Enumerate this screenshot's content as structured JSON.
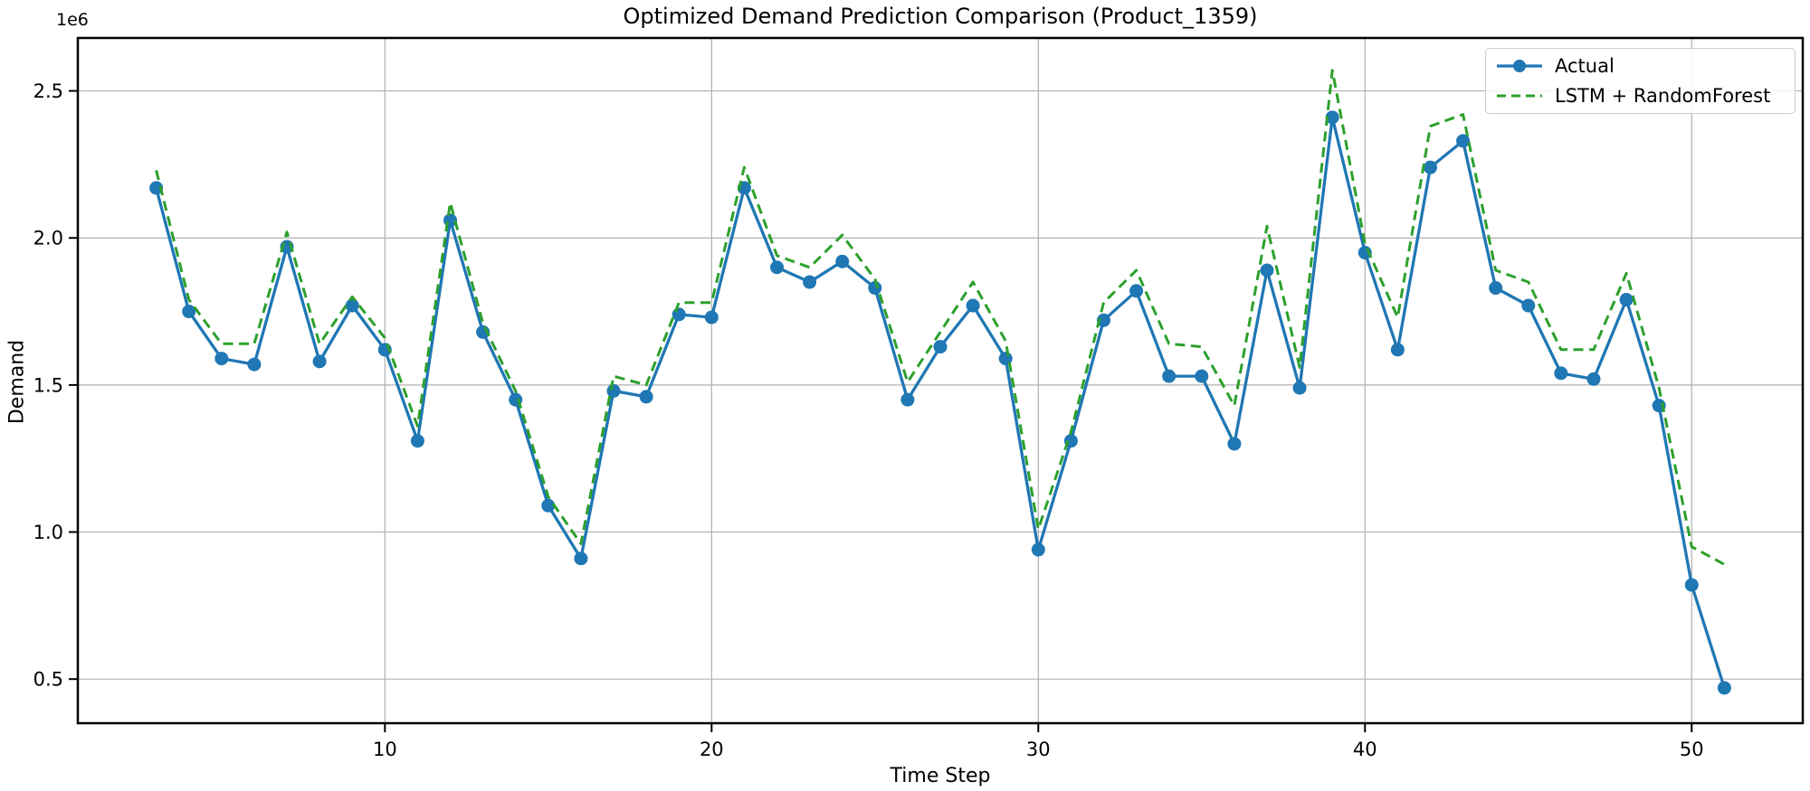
{
  "figure": {
    "title": "Optimized Demand Prediction Comparison (Product_1359)",
    "xlabel": "Time Step",
    "ylabel": "Demand",
    "offset_text": "1e6"
  },
  "legend": {
    "position": "upper right",
    "items": [
      {
        "label": "Actual",
        "color": "#1f77b4",
        "style": "solid-circle-marker"
      },
      {
        "label": "LSTM + RandomForest",
        "color": "#2ca02c",
        "style": "dashed"
      }
    ]
  },
  "colors": {
    "actual_line": "#1f77b4",
    "prediction_line": "#2ca02c",
    "grid": "#b0b0b0",
    "spine": "#000000",
    "background": "#ffffff",
    "legend_border": "#cccccc"
  },
  "chart_data": {
    "type": "line",
    "title": "Optimized Demand Prediction Comparison (Product_1359)",
    "xlabel": "Time Step",
    "ylabel": "Demand",
    "y_offset_multiplier": "1e6",
    "grid": true,
    "legend_position": "upper right",
    "xlim": [
      0.6,
      53.4
    ],
    "ylim": [
      350000,
      2680000
    ],
    "xticks": [
      10,
      20,
      30,
      40,
      50
    ],
    "yticks": [
      {
        "value": 500000,
        "label": "0.5"
      },
      {
        "value": 1000000,
        "label": "1.0"
      },
      {
        "value": 1500000,
        "label": "1.5"
      },
      {
        "value": 2000000,
        "label": "2.0"
      },
      {
        "value": 2500000,
        "label": "2.5"
      }
    ],
    "x": [
      3,
      4,
      5,
      6,
      7,
      8,
      9,
      10,
      11,
      12,
      13,
      14,
      15,
      16,
      17,
      18,
      19,
      20,
      21,
      22,
      23,
      24,
      25,
      26,
      27,
      28,
      29,
      30,
      31,
      32,
      33,
      34,
      35,
      36,
      37,
      38,
      39,
      40,
      41,
      42,
      43,
      44,
      45,
      46,
      47,
      48,
      49,
      50,
      51
    ],
    "series": [
      {
        "name": "Actual",
        "color": "#1f77b4",
        "line_style": "solid",
        "marker": "circle",
        "values": [
          2170000,
          1750000,
          1590000,
          1570000,
          1970000,
          1580000,
          1770000,
          1620000,
          1310000,
          2060000,
          1680000,
          1450000,
          1090000,
          910000,
          1480000,
          1460000,
          1740000,
          1730000,
          2170000,
          1900000,
          1850000,
          1920000,
          1830000,
          1450000,
          1630000,
          1770000,
          1590000,
          940000,
          1310000,
          1720000,
          1820000,
          1530000,
          1530000,
          1300000,
          1890000,
          1490000,
          2410000,
          1950000,
          1620000,
          2240000,
          2330000,
          1830000,
          1770000,
          1540000,
          1520000,
          1790000,
          1430000,
          820000,
          470000
        ]
      },
      {
        "name": "LSTM + RandomForest",
        "color": "#2ca02c",
        "line_style": "dashed",
        "marker": "none",
        "values": [
          2230000,
          1790000,
          1640000,
          1640000,
          2020000,
          1640000,
          1800000,
          1660000,
          1360000,
          2120000,
          1710000,
          1480000,
          1120000,
          960000,
          1530000,
          1500000,
          1780000,
          1780000,
          2240000,
          1940000,
          1900000,
          2010000,
          1860000,
          1510000,
          1680000,
          1850000,
          1650000,
          1010000,
          1340000,
          1780000,
          1890000,
          1640000,
          1630000,
          1430000,
          2040000,
          1560000,
          2570000,
          1980000,
          1730000,
          2380000,
          2420000,
          1890000,
          1850000,
          1620000,
          1620000,
          1880000,
          1490000,
          950000,
          890000
        ]
      }
    ]
  }
}
